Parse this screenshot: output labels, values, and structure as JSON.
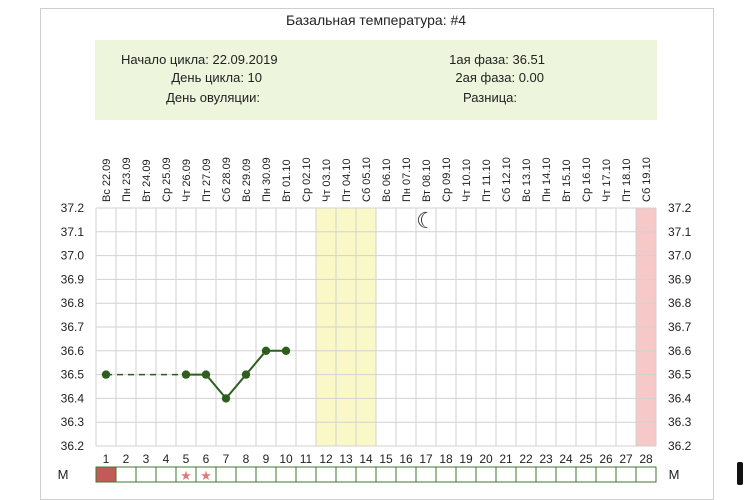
{
  "title": "Базальная температура: #4",
  "info": {
    "cycle_start_label": "Начало цикла: 22.09.2019",
    "cycle_day_label": "День цикла: 10",
    "ovulation_day_label": "День овуляции:",
    "phase1_label": "1ая фаза: 36.51",
    "phase2_label": "2ая фаза: 0.00",
    "difference_label": "Разница:"
  },
  "chart_data": {
    "type": "line",
    "title": "Базальная температура: #4",
    "dates": [
      "Вс 22.09",
      "Пн 23.09",
      "Вт 24.09",
      "Ср 25.09",
      "Чт 26.09",
      "Пт 27.09",
      "Сб 28.09",
      "Вс 29.09",
      "Пн 30.09",
      "Вт 01.10",
      "Ср 02.10",
      "Чт 03.10",
      "Пт 04.10",
      "Сб 05.10",
      "Вс 06.10",
      "Пн 07.10",
      "Вт 08.10",
      "Ср 09.10",
      "Чт 10.10",
      "Пт 11.10",
      "Сб 12.10",
      "Вс 13.10",
      "Пн 14.10",
      "Вт 15.10",
      "Ср 16.10",
      "Чт 17.10",
      "Пт 18.10",
      "Сб 19.10"
    ],
    "days": [
      1,
      2,
      3,
      4,
      5,
      6,
      7,
      8,
      9,
      10,
      11,
      12,
      13,
      14,
      15,
      16,
      17,
      18,
      19,
      20,
      21,
      22,
      23,
      24,
      25,
      26,
      27,
      28
    ],
    "y_ticks": [
      "37.2",
      "37.1",
      "37.0",
      "36.9",
      "36.8",
      "36.7",
      "36.6",
      "36.5",
      "36.4",
      "36.3",
      "36.2"
    ],
    "ylim": [
      36.2,
      37.2
    ],
    "series": [
      {
        "points": [
          {
            "day": 1,
            "value": 36.5
          },
          {
            "day": 5,
            "value": 36.5
          },
          {
            "day": 6,
            "value": 36.5
          },
          {
            "day": 7,
            "value": 36.4
          },
          {
            "day": 8,
            "value": 36.5
          },
          {
            "day": 9,
            "value": 36.6
          },
          {
            "day": 10,
            "value": 36.6
          }
        ],
        "color": "#2e5e1e"
      }
    ],
    "gap_dashed_between": [
      1,
      5
    ],
    "highlight_columns_yellow": [
      12,
      13,
      14
    ],
    "highlight_columns_pink": [
      28
    ],
    "moon_marker_day": 17,
    "menstruation_label": "М",
    "menstruation_cells_filled": [
      1
    ],
    "star_cells": [
      5,
      6
    ],
    "colors": {
      "grid": "#d2d2d2",
      "yellow": "#fbf8c8",
      "pink": "#f6c8c8",
      "menstruation": "#c25a5a",
      "cell_border": "#3f7a2e",
      "star": "#e07a7a"
    },
    "star_glyph": "★",
    "moon_glyph": "☾"
  }
}
